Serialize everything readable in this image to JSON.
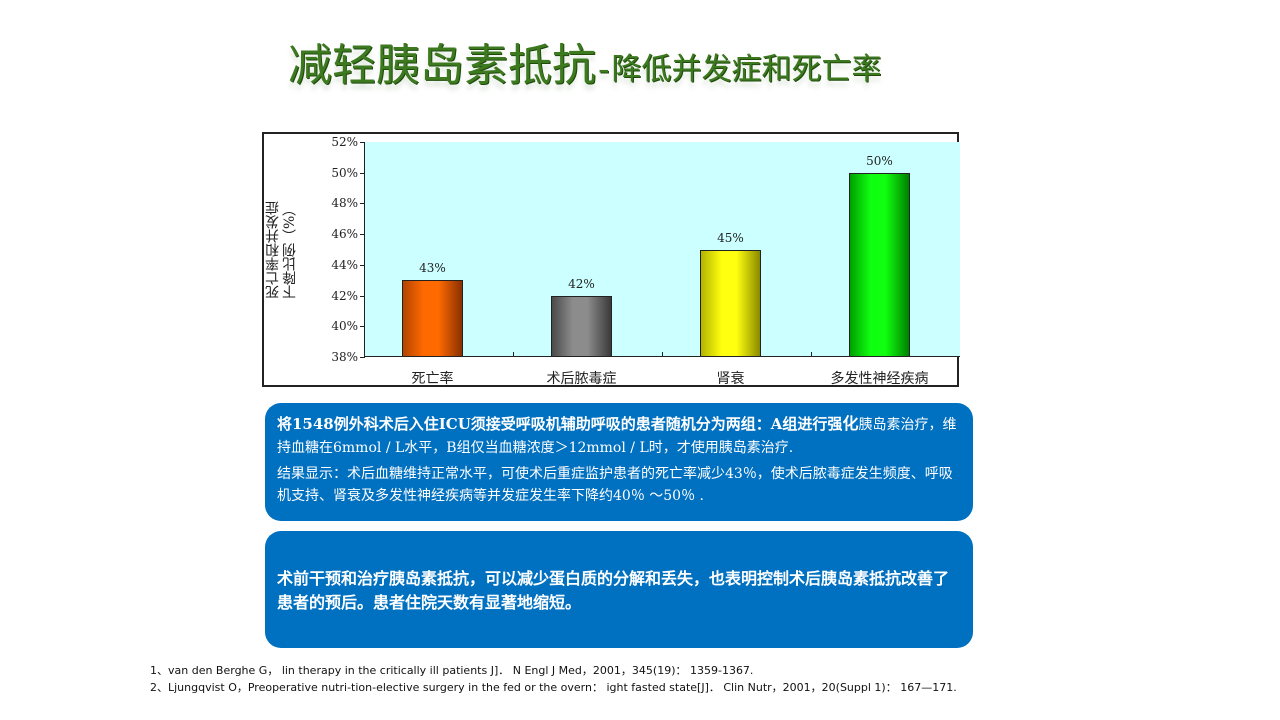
{
  "title": {
    "main": "减轻胰岛素抵抗",
    "dash": "-",
    "sub": "降低并发症和死亡率"
  },
  "chart_data": {
    "type": "bar",
    "title": "",
    "categories": [
      "死亡率",
      "术后脓毒症",
      "肾衰",
      "多发性神经疾病"
    ],
    "values": [
      43,
      42,
      45,
      50
    ],
    "value_labels": [
      "43%",
      "42%",
      "45%",
      "50%"
    ],
    "colors": [
      "#ff6600",
      "#808080",
      "#ffff00",
      "#00ee00"
    ],
    "xlabel": "",
    "ylabel": "死亡率和并发症下降比例（%）",
    "ylabel_lines": [
      "死亡率和并发症",
      "下降比例（%）"
    ],
    "ylim": [
      38,
      52
    ],
    "yticks": [
      "52%",
      "50%",
      "48%",
      "46%",
      "44%",
      "42%",
      "40%",
      "38%"
    ],
    "plot_background": "#ccffff",
    "grid": false,
    "legend": "none"
  },
  "box1": {
    "line1_prefix": "将1548例外科术后入住ICU须接受呼吸机辅助呼吸的患者随机分为两组：A组进行强",
    "line1_big": "化",
    "line1_rest": "胰岛素治疗，维持血糖在6mmol / L水平，B组仅当血糖浓度＞12mmol / L时，才使用胰岛素治疗.",
    "result": "结果显示：术后血糖维持正常水平，可使术后重症监护患者的死亡率减少43％，使术后脓毒症发生频度、呼吸机支持、肾衰及多发性神经疾病等并发症发生率下降约40％ ～50％ ."
  },
  "box2": {
    "text": "术前干预和治疗胰岛素抵抗，可以减少蛋白质的分解和丢失，也表明控制术后胰岛素抵抗改善了患者的预后。患者住院天数有显著地缩短。"
  },
  "references": [
    "1、van den Berghe G， lin therapy in the critically ill patients J]． N Engl J Med，2001，345(19)： 1359-1367.",
    "2、Ljungqvist O，Preoperative nutri-tion-elective surgery in the fed or the overn： ight fasted state[J]． Clin Nutr，2001，20(Suppl 1)： 167—171."
  ],
  "colors": {
    "title_green": "#3d7a1f",
    "box_blue": "#0070c0"
  }
}
